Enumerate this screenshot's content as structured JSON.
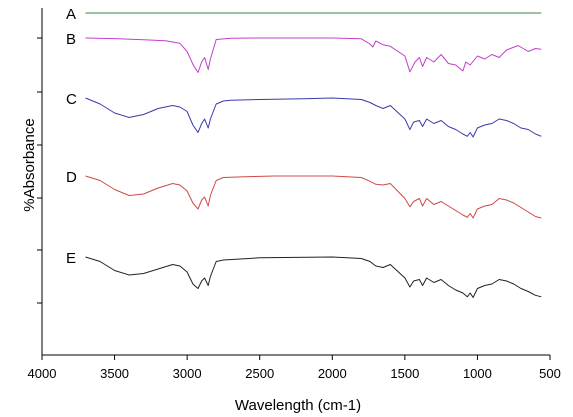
{
  "chart_data": {
    "type": "line",
    "title": "",
    "xlabel": "Wavelength (cm-1)",
    "ylabel": "%Absorbance",
    "xlim": [
      4000,
      500
    ],
    "x_reversed": true,
    "x_ticks": [
      4000,
      3500,
      3000,
      2500,
      2000,
      1500,
      1000,
      500
    ],
    "y_ticks_labeled": false,
    "grid": false,
    "legend": "none",
    "series": [
      {
        "name": "A",
        "color": "#3a8a3a",
        "points": [
          [
            3700,
            0.0
          ],
          [
            3500,
            0.02
          ],
          [
            3300,
            0.025
          ],
          [
            3000,
            0.012
          ],
          [
            2900,
            0.02
          ],
          [
            2500,
            0.01
          ],
          [
            2000,
            0.015
          ],
          [
            1500,
            0.03
          ],
          [
            1300,
            0.035
          ],
          [
            1100,
            0.11
          ],
          [
            1000,
            0.27
          ],
          [
            950,
            0.17
          ],
          [
            900,
            0.19
          ],
          [
            800,
            0.15
          ],
          [
            700,
            0.19
          ],
          [
            600,
            0.26
          ],
          [
            560,
            0.28
          ]
        ]
      },
      {
        "name": "B",
        "color": "#c040c8",
        "points": [
          [
            3700,
            0.0
          ],
          [
            3500,
            0.04
          ],
          [
            3300,
            0.12
          ],
          [
            3150,
            0.18
          ],
          [
            3050,
            0.35
          ],
          [
            3000,
            0.9
          ],
          [
            2960,
            1.75
          ],
          [
            2925,
            2.3
          ],
          [
            2900,
            1.6
          ],
          [
            2880,
            1.3
          ],
          [
            2855,
            2.1
          ],
          [
            2840,
            1.4
          ],
          [
            2800,
            0.1
          ],
          [
            2700,
            0.02
          ],
          [
            2500,
            0.0
          ],
          [
            2000,
            0.0
          ],
          [
            1800,
            0.05
          ],
          [
            1740,
            0.4
          ],
          [
            1720,
            0.6
          ],
          [
            1700,
            0.2
          ],
          [
            1650,
            0.45
          ],
          [
            1600,
            0.55
          ],
          [
            1500,
            1.2
          ],
          [
            1465,
            2.25
          ],
          [
            1430,
            1.6
          ],
          [
            1400,
            1.3
          ],
          [
            1378,
            1.9
          ],
          [
            1350,
            1.3
          ],
          [
            1300,
            1.6
          ],
          [
            1250,
            1.1
          ],
          [
            1200,
            1.7
          ],
          [
            1150,
            1.8
          ],
          [
            1100,
            2.2
          ],
          [
            1080,
            1.6
          ],
          [
            1050,
            1.8
          ],
          [
            1000,
            1.2
          ],
          [
            950,
            1.4
          ],
          [
            900,
            1.1
          ],
          [
            850,
            1.3
          ],
          [
            800,
            0.8
          ],
          [
            720,
            0.5
          ],
          [
            650,
            0.9
          ],
          [
            600,
            0.7
          ],
          [
            560,
            0.75
          ]
        ]
      },
      {
        "name": "C",
        "color": "#3a3aa8",
        "points": [
          [
            3700,
            0.0
          ],
          [
            3600,
            0.4
          ],
          [
            3500,
            1.0
          ],
          [
            3400,
            1.3
          ],
          [
            3300,
            1.1
          ],
          [
            3200,
            0.7
          ],
          [
            3100,
            0.5
          ],
          [
            3050,
            0.6
          ],
          [
            3000,
            0.9
          ],
          [
            2960,
            1.8
          ],
          [
            2925,
            2.3
          ],
          [
            2900,
            1.7
          ],
          [
            2880,
            1.4
          ],
          [
            2855,
            2.0
          ],
          [
            2840,
            1.4
          ],
          [
            2800,
            0.4
          ],
          [
            2750,
            0.2
          ],
          [
            2700,
            0.15
          ],
          [
            2500,
            0.1
          ],
          [
            2200,
            0.05
          ],
          [
            2000,
            0.0
          ],
          [
            1800,
            0.1
          ],
          [
            1740,
            0.3
          ],
          [
            1700,
            0.5
          ],
          [
            1650,
            0.7
          ],
          [
            1600,
            0.5
          ],
          [
            1500,
            1.4
          ],
          [
            1465,
            2.1
          ],
          [
            1440,
            1.6
          ],
          [
            1400,
            1.5
          ],
          [
            1378,
            1.9
          ],
          [
            1350,
            1.4
          ],
          [
            1300,
            1.7
          ],
          [
            1250,
            1.5
          ],
          [
            1200,
            1.9
          ],
          [
            1150,
            2.1
          ],
          [
            1100,
            2.4
          ],
          [
            1070,
            2.55
          ],
          [
            1050,
            2.3
          ],
          [
            1030,
            2.6
          ],
          [
            1000,
            2.0
          ],
          [
            950,
            1.8
          ],
          [
            900,
            1.7
          ],
          [
            850,
            1.4
          ],
          [
            800,
            1.5
          ],
          [
            750,
            1.7
          ],
          [
            700,
            2.0
          ],
          [
            650,
            2.1
          ],
          [
            600,
            2.4
          ],
          [
            560,
            2.55
          ]
        ]
      },
      {
        "name": "D",
        "color": "#d04848",
        "points": [
          [
            3700,
            0.0
          ],
          [
            3600,
            0.3
          ],
          [
            3500,
            0.9
          ],
          [
            3400,
            1.3
          ],
          [
            3300,
            1.2
          ],
          [
            3200,
            0.8
          ],
          [
            3100,
            0.5
          ],
          [
            3050,
            0.6
          ],
          [
            3000,
            1.0
          ],
          [
            2960,
            1.8
          ],
          [
            2925,
            2.2
          ],
          [
            2900,
            1.6
          ],
          [
            2880,
            1.4
          ],
          [
            2855,
            2.0
          ],
          [
            2840,
            1.3
          ],
          [
            2800,
            0.3
          ],
          [
            2750,
            0.1
          ],
          [
            2600,
            0.05
          ],
          [
            2400,
            0.0
          ],
          [
            2000,
            0.0
          ],
          [
            1800,
            0.1
          ],
          [
            1740,
            0.35
          ],
          [
            1700,
            0.55
          ],
          [
            1650,
            0.6
          ],
          [
            1600,
            0.5
          ],
          [
            1500,
            1.5
          ],
          [
            1465,
            2.05
          ],
          [
            1440,
            1.7
          ],
          [
            1400,
            1.5
          ],
          [
            1378,
            2.0
          ],
          [
            1350,
            1.5
          ],
          [
            1300,
            1.9
          ],
          [
            1250,
            1.7
          ],
          [
            1200,
            2.0
          ],
          [
            1150,
            2.3
          ],
          [
            1100,
            2.6
          ],
          [
            1070,
            2.75
          ],
          [
            1050,
            2.5
          ],
          [
            1030,
            2.8
          ],
          [
            1000,
            2.2
          ],
          [
            950,
            2.0
          ],
          [
            900,
            1.9
          ],
          [
            850,
            1.5
          ],
          [
            800,
            1.6
          ],
          [
            750,
            1.8
          ],
          [
            700,
            2.1
          ],
          [
            650,
            2.4
          ],
          [
            600,
            2.7
          ],
          [
            560,
            2.8
          ]
        ]
      },
      {
        "name": "E",
        "color": "#222222",
        "points": [
          [
            3700,
            0.0
          ],
          [
            3600,
            0.3
          ],
          [
            3500,
            0.9
          ],
          [
            3400,
            1.2
          ],
          [
            3300,
            1.1
          ],
          [
            3200,
            0.8
          ],
          [
            3100,
            0.5
          ],
          [
            3050,
            0.6
          ],
          [
            3000,
            1.0
          ],
          [
            2960,
            1.8
          ],
          [
            2925,
            2.1
          ],
          [
            2900,
            1.6
          ],
          [
            2880,
            1.4
          ],
          [
            2855,
            1.9
          ],
          [
            2840,
            1.3
          ],
          [
            2800,
            0.3
          ],
          [
            2750,
            0.2
          ],
          [
            2500,
            0.05
          ],
          [
            2000,
            0.0
          ],
          [
            1800,
            0.1
          ],
          [
            1740,
            0.3
          ],
          [
            1700,
            0.6
          ],
          [
            1650,
            0.7
          ],
          [
            1600,
            0.5
          ],
          [
            1500,
            1.4
          ],
          [
            1465,
            2.0
          ],
          [
            1440,
            1.6
          ],
          [
            1400,
            1.5
          ],
          [
            1378,
            1.9
          ],
          [
            1350,
            1.4
          ],
          [
            1300,
            1.7
          ],
          [
            1250,
            1.5
          ],
          [
            1200,
            1.9
          ],
          [
            1150,
            2.2
          ],
          [
            1100,
            2.4
          ],
          [
            1070,
            2.65
          ],
          [
            1050,
            2.4
          ],
          [
            1030,
            2.7
          ],
          [
            1000,
            2.1
          ],
          [
            950,
            1.9
          ],
          [
            900,
            1.8
          ],
          [
            850,
            1.5
          ],
          [
            800,
            1.6
          ],
          [
            750,
            1.8
          ],
          [
            700,
            2.1
          ],
          [
            650,
            2.3
          ],
          [
            600,
            2.55
          ],
          [
            560,
            2.65
          ]
        ]
      }
    ]
  }
}
